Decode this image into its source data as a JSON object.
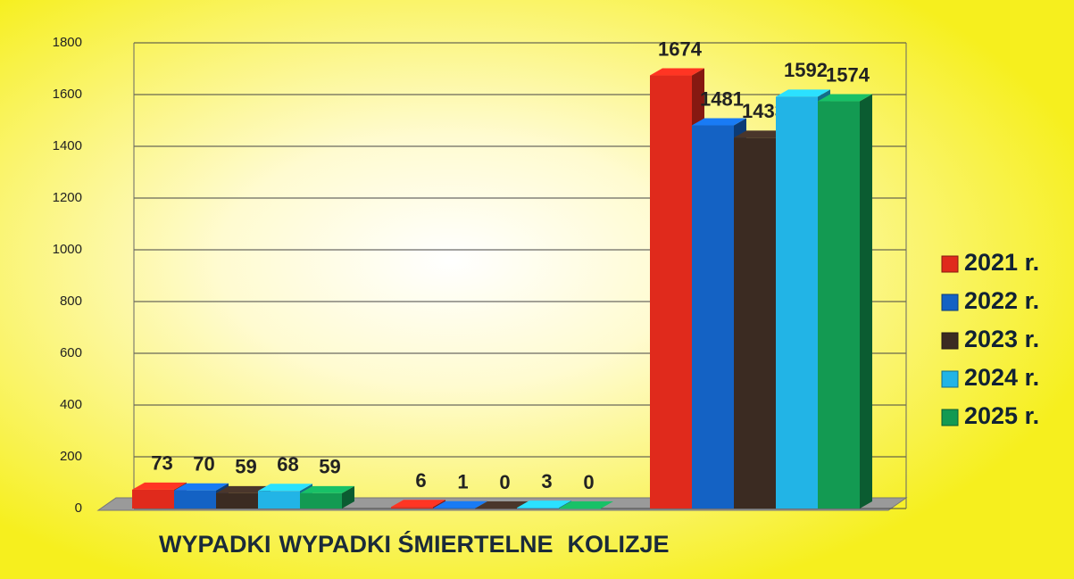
{
  "chart_data": {
    "type": "bar",
    "categories": [
      "WYPADKI",
      "WYPADKI ŚMIERTELNE",
      "KOLIZJE"
    ],
    "series": [
      {
        "name": "2021 r.",
        "color": "#e02a1c",
        "values": [
          73,
          6,
          1674
        ]
      },
      {
        "name": "2022 r.",
        "color": "#1462c4",
        "values": [
          70,
          1,
          1481
        ]
      },
      {
        "name": "2023 r.",
        "color": "#3b2b22",
        "values": [
          59,
          0,
          1433
        ]
      },
      {
        "name": "2024 r.",
        "color": "#22b4e6",
        "values": [
          68,
          3,
          1592
        ]
      },
      {
        "name": "2025 r.",
        "color": "#139a52",
        "values": [
          59,
          0,
          1574
        ]
      }
    ],
    "ylim": [
      0,
      1800
    ],
    "yticks": [
      0,
      200,
      400,
      600,
      800,
      1000,
      1200,
      1400,
      1600,
      1800
    ],
    "grid": true,
    "legend": "right"
  }
}
